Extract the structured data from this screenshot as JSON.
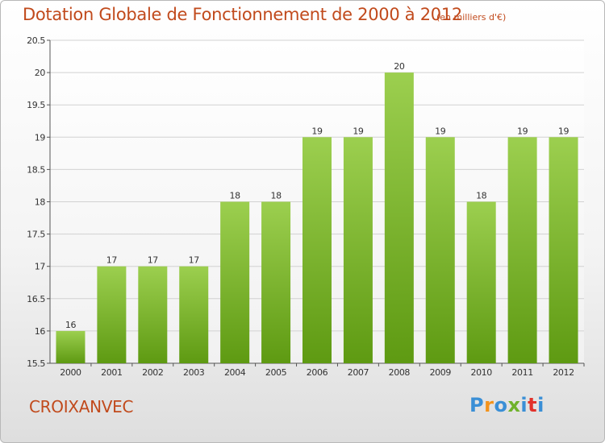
{
  "header": {
    "title": "Dotation Globale de Fonctionnement de 2000 à 2012",
    "unit": "(en milliers d'€)"
  },
  "footer": {
    "place": "CROIXANVEC",
    "logo": "Proxiti"
  },
  "colors": {
    "title": "#c14a1c",
    "bar_top": "#9ccf4f",
    "bar_bottom": "#5e9a12",
    "logo_letters": [
      "#3a8fd6",
      "#f3931b",
      "#3a8fd6",
      "#6fb22b",
      "#3a8fd6",
      "#e2322b",
      "#3a8fd6"
    ]
  },
  "chart_data": {
    "type": "bar",
    "title": "Dotation Globale de Fonctionnement de 2000 à 2012",
    "subtitle": "(en milliers d'€)",
    "xlabel": "",
    "ylabel": "",
    "categories": [
      "2000",
      "2001",
      "2002",
      "2003",
      "2004",
      "2005",
      "2006",
      "2007",
      "2008",
      "2009",
      "2010",
      "2011",
      "2012"
    ],
    "values": [
      16,
      17,
      17,
      17,
      18,
      18,
      19,
      19,
      20,
      19,
      18,
      19,
      19
    ],
    "data_labels": [
      "16",
      "17",
      "17",
      "17",
      "18",
      "18",
      "19",
      "19",
      "20",
      "19",
      "18",
      "19",
      "19"
    ],
    "ylim": [
      15.5,
      20.5
    ],
    "yticks": [
      "15.5",
      "16",
      "16.5",
      "17",
      "17.5",
      "18",
      "18.5",
      "19",
      "19.5",
      "20",
      "20.5"
    ],
    "grid": true,
    "legend": "none"
  }
}
